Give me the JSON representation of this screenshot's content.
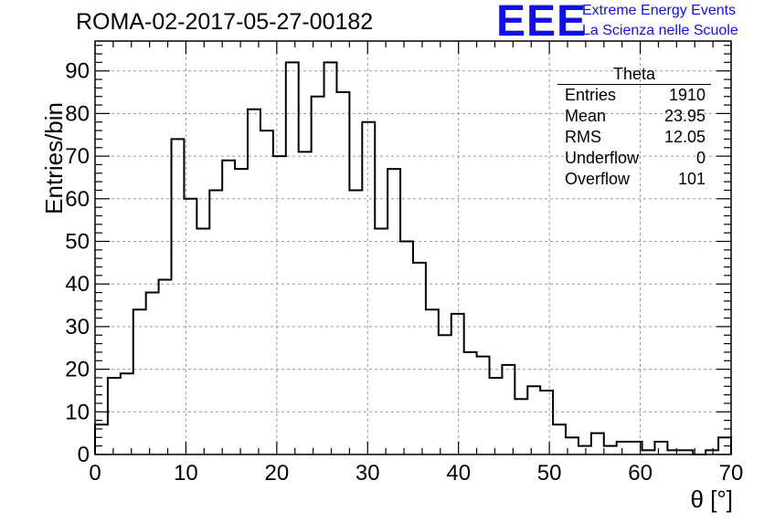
{
  "header": {
    "title": "ROMA-02-2017-05-27-00182",
    "logo_text": "EEE",
    "org_line1": "Extreme Energy Events",
    "org_line2": "La Scienza nelle Scuole"
  },
  "stats": {
    "title": "Theta",
    "rows": [
      {
        "label": "Entries",
        "value": "1910"
      },
      {
        "label": "Mean",
        "value": "23.95"
      },
      {
        "label": "RMS",
        "value": "12.05"
      },
      {
        "label": "Underflow",
        "value": "0"
      },
      {
        "label": "Overflow",
        "value": "101"
      }
    ]
  },
  "colors": {
    "line": "#000000",
    "grid": "#9a9a9a",
    "logo": "#1010e6"
  },
  "chart_data": {
    "type": "histogram",
    "xlabel": "θ [°]",
    "ylabel": "Entries/bin",
    "xlim": [
      0,
      70
    ],
    "ylim": [
      0,
      97
    ],
    "grid": true,
    "bin_width": 1.4,
    "x_ticks": [
      0,
      10,
      20,
      30,
      40,
      50,
      60,
      70
    ],
    "y_ticks": [
      0,
      10,
      20,
      30,
      40,
      50,
      60,
      70,
      80,
      90
    ],
    "values": [
      7,
      18,
      19,
      34,
      38,
      41,
      74,
      60,
      53,
      62,
      69,
      67,
      81,
      76,
      70,
      92,
      71,
      84,
      92,
      85,
      62,
      78,
      53,
      67,
      50,
      45,
      34,
      28,
      33,
      24,
      23,
      18,
      21,
      13,
      16,
      15,
      7,
      4,
      2,
      5,
      2,
      3,
      3,
      1,
      3,
      1,
      1,
      0,
      1,
      4
    ]
  }
}
